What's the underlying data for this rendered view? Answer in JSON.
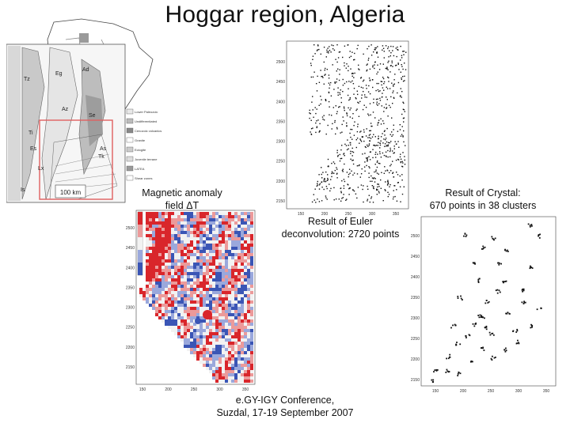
{
  "slide": {
    "title": "Hoggar region, Algeria",
    "captions": {
      "magnetic_line1": "Magnetic anomaly",
      "magnetic_line2": "field ΔT",
      "euler_line1": "Result of Euler",
      "euler_line2": "deconvolution: 2720 points",
      "crystal_line1": "Result of Crystal:",
      "crystal_line2": "670 points in 38 clusters",
      "conference_line1": "e.GY-IGY Conference,",
      "conference_line2": "Suzdal, 17-19 September 2007"
    },
    "geology_map": {
      "map_labels": [
        "Tz",
        "Eg",
        "Ad",
        "Az",
        "Se",
        "Ti",
        "Es",
        "Lx",
        "As",
        "Tk",
        "Is"
      ],
      "scale_label": "100 km",
      "legend_items": [
        "Lower Paleozoic",
        "Undifferentiated",
        "Cenozoic volcanics",
        "Granite",
        "Eclogite",
        "Juvenile terrane",
        "LATEA",
        "Shear zones"
      ]
    },
    "euler_plot": {
      "y_ticks": [
        "2500",
        "2450",
        "2400",
        "2350",
        "2300",
        "2250",
        "2200",
        "2150"
      ],
      "x_ticks": [
        "150",
        "200",
        "250",
        "300",
        "350"
      ]
    },
    "magnetic_plot": {
      "y_ticks": [
        "2500",
        "2450",
        "2400",
        "2350",
        "2300",
        "2250",
        "2200",
        "2150"
      ],
      "x_ticks": [
        "150",
        "200",
        "250",
        "300",
        "350"
      ]
    },
    "crystal_plot": {
      "y_ticks": [
        "2500",
        "2450",
        "2400",
        "2350",
        "2300",
        "2250",
        "2200",
        "2150"
      ],
      "x_ticks": [
        "150",
        "200",
        "250",
        "300",
        "350"
      ]
    },
    "colors": {
      "positive_anomaly": "#d9262b",
      "negative_anomaly": "#3a55b5",
      "neutral": "#f2f2f2",
      "marker": "#111111"
    }
  }
}
